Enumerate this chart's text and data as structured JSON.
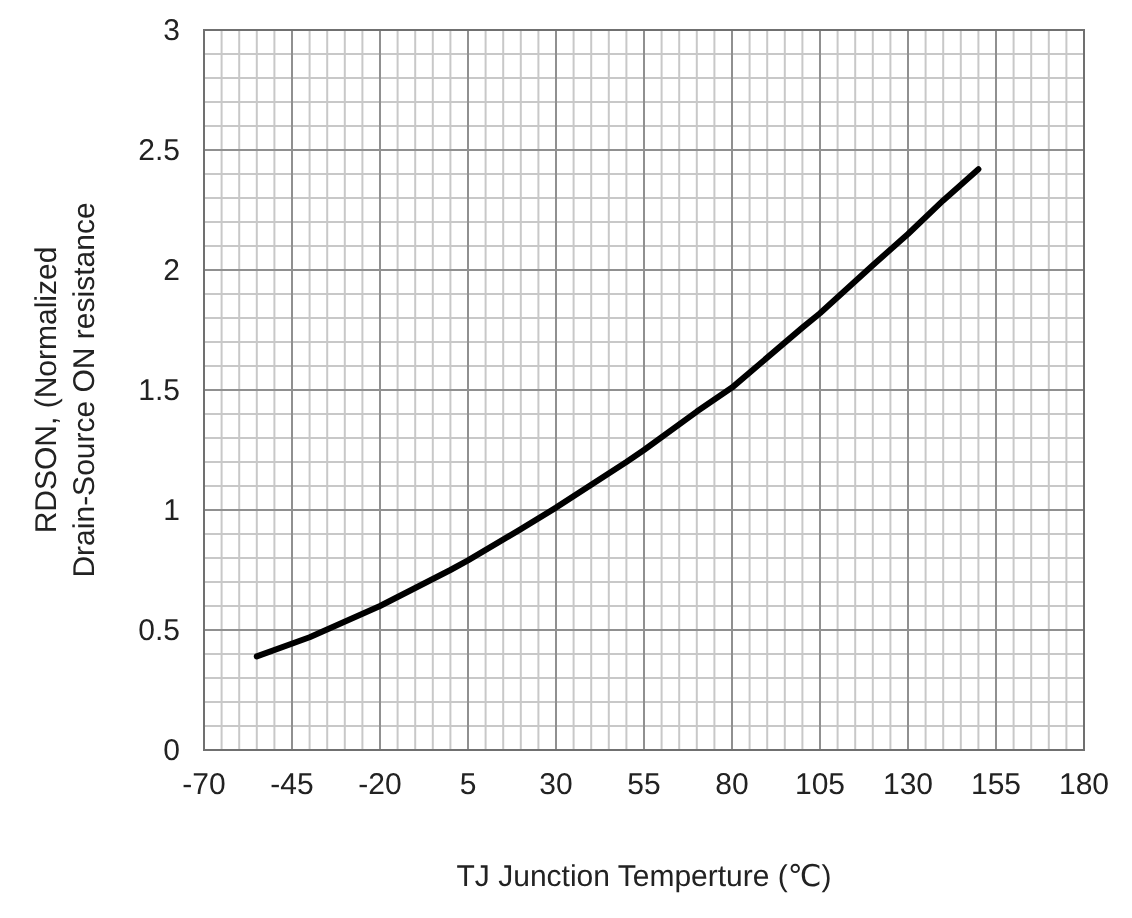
{
  "chart_data": {
    "type": "line",
    "xlabel": "TJ  Junction Temperture  (℃)",
    "ylabel": "RDSON, (Normalized\nDrain-Source ON resistance",
    "x": [
      -55,
      -40,
      -20,
      0,
      5,
      20,
      30,
      50,
      55,
      70,
      80,
      100,
      105,
      120,
      130,
      140,
      150
    ],
    "series": [
      {
        "color": "#000000",
        "values": [
          0.39,
          0.47,
          0.6,
          0.75,
          0.79,
          0.92,
          1.01,
          1.2,
          1.25,
          1.41,
          1.51,
          1.76,
          1.82,
          2.02,
          2.15,
          2.29,
          2.42
        ]
      }
    ],
    "xlim": [
      -70,
      180
    ],
    "xticks": [
      -70,
      -45,
      -20,
      5,
      30,
      55,
      80,
      105,
      130,
      155,
      180
    ],
    "ylim": [
      0,
      3
    ],
    "yticks": [
      0,
      0.5,
      1,
      1.5,
      2,
      2.5,
      3
    ],
    "grid": true,
    "marker": "none",
    "line_style": "solid"
  }
}
